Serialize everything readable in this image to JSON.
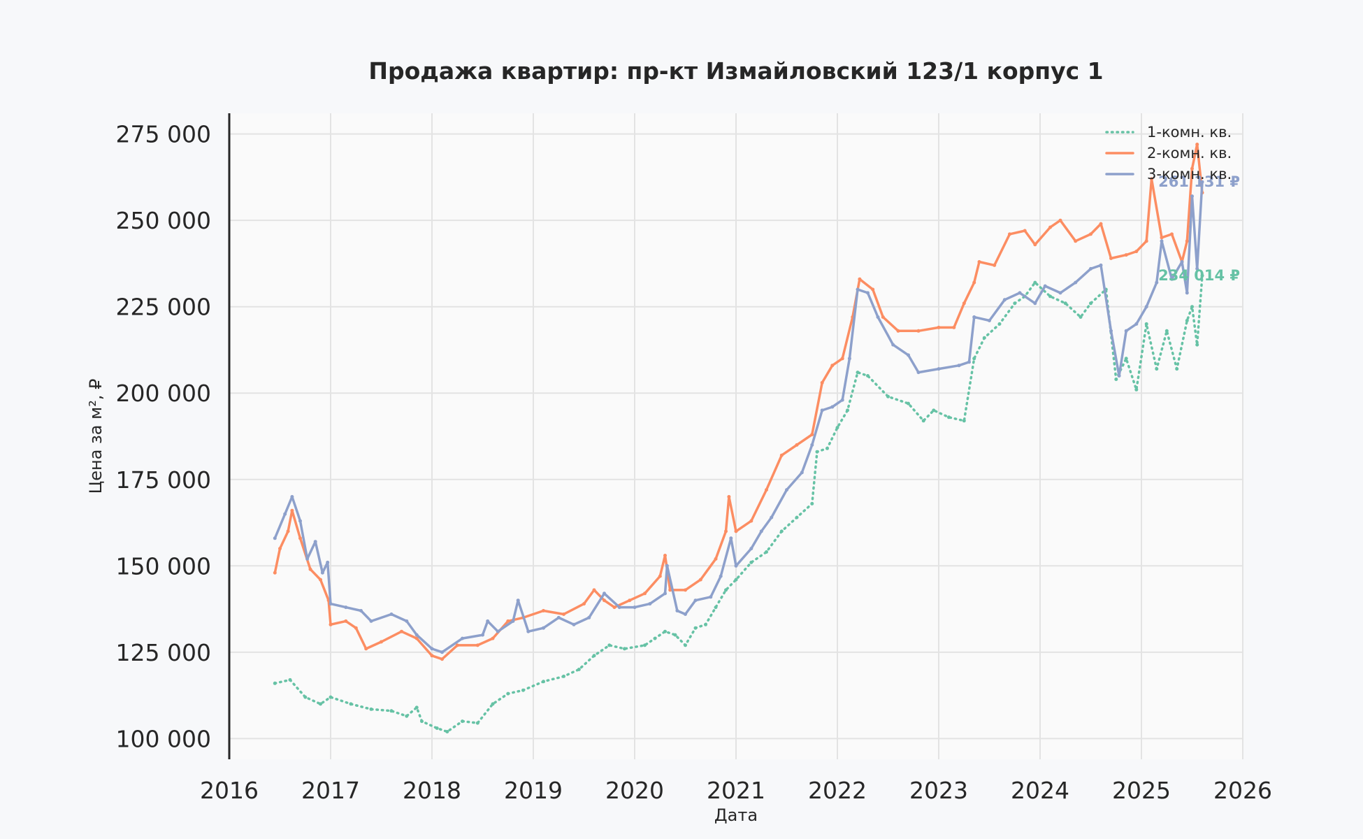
{
  "chart_data": {
    "type": "line",
    "title": "Продажа квартир: пр-кт Измайловский 123/1 корпус 1",
    "xlabel": "Дата",
    "ylabel": "Цена за м², ₽",
    "xlim": [
      2016.0,
      2026.0
    ],
    "ylim": [
      94000,
      281000
    ],
    "x_ticks": [
      "2016",
      "2017",
      "2018",
      "2019",
      "2020",
      "2021",
      "2022",
      "2023",
      "2024",
      "2025",
      "2026"
    ],
    "y_ticks": [
      "100 000",
      "125 000",
      "150 000",
      "175 000",
      "200 000",
      "225 000",
      "250 000",
      "275 000"
    ],
    "grid": true,
    "legend_position": "top-right",
    "series": [
      {
        "name": "1-комн. кв.",
        "color": "#66c2a5",
        "style": "dotted",
        "end_label": "234 014 ₽",
        "points": [
          [
            2016.45,
            116000
          ],
          [
            2016.6,
            117000
          ],
          [
            2016.75,
            112000
          ],
          [
            2016.9,
            110000
          ],
          [
            2017.0,
            112000
          ],
          [
            2017.2,
            110000
          ],
          [
            2017.4,
            108500
          ],
          [
            2017.6,
            108000
          ],
          [
            2017.75,
            106500
          ],
          [
            2017.85,
            109000
          ],
          [
            2017.9,
            105000
          ],
          [
            2018.05,
            103000
          ],
          [
            2018.15,
            102000
          ],
          [
            2018.3,
            105000
          ],
          [
            2018.45,
            104500
          ],
          [
            2018.6,
            110000
          ],
          [
            2018.75,
            113000
          ],
          [
            2018.9,
            114000
          ],
          [
            2019.1,
            116500
          ],
          [
            2019.3,
            118000
          ],
          [
            2019.45,
            120000
          ],
          [
            2019.6,
            124000
          ],
          [
            2019.75,
            127000
          ],
          [
            2019.9,
            126000
          ],
          [
            2020.1,
            127000
          ],
          [
            2020.2,
            129000
          ],
          [
            2020.3,
            131000
          ],
          [
            2020.4,
            130000
          ],
          [
            2020.5,
            127000
          ],
          [
            2020.6,
            132000
          ],
          [
            2020.7,
            133000
          ],
          [
            2020.8,
            138000
          ],
          [
            2020.9,
            143000
          ],
          [
            2021.0,
            146000
          ],
          [
            2021.15,
            151000
          ],
          [
            2021.3,
            154000
          ],
          [
            2021.45,
            160000
          ],
          [
            2021.6,
            164000
          ],
          [
            2021.75,
            168000
          ],
          [
            2021.8,
            183000
          ],
          [
            2021.9,
            184000
          ],
          [
            2022.0,
            190000
          ],
          [
            2022.1,
            195000
          ],
          [
            2022.2,
            206000
          ],
          [
            2022.3,
            205000
          ],
          [
            2022.5,
            199000
          ],
          [
            2022.7,
            197000
          ],
          [
            2022.85,
            192000
          ],
          [
            2022.95,
            195000
          ],
          [
            2023.1,
            193000
          ],
          [
            2023.25,
            192000
          ],
          [
            2023.35,
            210000
          ],
          [
            2023.45,
            216000
          ],
          [
            2023.6,
            220000
          ],
          [
            2023.75,
            226000
          ],
          [
            2023.85,
            228000
          ],
          [
            2023.95,
            232000
          ],
          [
            2024.1,
            228000
          ],
          [
            2024.25,
            226000
          ],
          [
            2024.4,
            222000
          ],
          [
            2024.5,
            226000
          ],
          [
            2024.65,
            230000
          ],
          [
            2024.75,
            204000
          ],
          [
            2024.85,
            210000
          ],
          [
            2024.95,
            201000
          ],
          [
            2025.05,
            220000
          ],
          [
            2025.15,
            207000
          ],
          [
            2025.25,
            218000
          ],
          [
            2025.35,
            207000
          ],
          [
            2025.45,
            221000
          ],
          [
            2025.5,
            225000
          ],
          [
            2025.55,
            214000
          ],
          [
            2025.6,
            234014
          ]
        ]
      },
      {
        "name": "2-комн. кв.",
        "color": "#fc8d62",
        "style": "solid",
        "end_label": "",
        "points": [
          [
            2016.45,
            148000
          ],
          [
            2016.5,
            155000
          ],
          [
            2016.58,
            160000
          ],
          [
            2016.62,
            166000
          ],
          [
            2016.7,
            158000
          ],
          [
            2016.8,
            149000
          ],
          [
            2016.9,
            146000
          ],
          [
            2016.98,
            140000
          ],
          [
            2017.0,
            133000
          ],
          [
            2017.15,
            134000
          ],
          [
            2017.25,
            132000
          ],
          [
            2017.35,
            126000
          ],
          [
            2017.5,
            128000
          ],
          [
            2017.7,
            131000
          ],
          [
            2017.85,
            129000
          ],
          [
            2018.0,
            124000
          ],
          [
            2018.1,
            123000
          ],
          [
            2018.25,
            127000
          ],
          [
            2018.45,
            127000
          ],
          [
            2018.6,
            129000
          ],
          [
            2018.75,
            134000
          ],
          [
            2018.9,
            135000
          ],
          [
            2019.1,
            137000
          ],
          [
            2019.3,
            136000
          ],
          [
            2019.5,
            139000
          ],
          [
            2019.6,
            143000
          ],
          [
            2019.7,
            140000
          ],
          [
            2019.8,
            138000
          ],
          [
            2019.95,
            140000
          ],
          [
            2020.1,
            142000
          ],
          [
            2020.25,
            147000
          ],
          [
            2020.3,
            153000
          ],
          [
            2020.35,
            143000
          ],
          [
            2020.5,
            143000
          ],
          [
            2020.65,
            146000
          ],
          [
            2020.8,
            152000
          ],
          [
            2020.9,
            160000
          ],
          [
            2020.93,
            170000
          ],
          [
            2021.0,
            160000
          ],
          [
            2021.15,
            163000
          ],
          [
            2021.3,
            172000
          ],
          [
            2021.45,
            182000
          ],
          [
            2021.6,
            185000
          ],
          [
            2021.75,
            188000
          ],
          [
            2021.85,
            203000
          ],
          [
            2021.95,
            208000
          ],
          [
            2022.05,
            210000
          ],
          [
            2022.15,
            222000
          ],
          [
            2022.22,
            233000
          ],
          [
            2022.35,
            230000
          ],
          [
            2022.45,
            222000
          ],
          [
            2022.6,
            218000
          ],
          [
            2022.8,
            218000
          ],
          [
            2023.0,
            219000
          ],
          [
            2023.15,
            219000
          ],
          [
            2023.25,
            226000
          ],
          [
            2023.35,
            232000
          ],
          [
            2023.4,
            238000
          ],
          [
            2023.55,
            237000
          ],
          [
            2023.7,
            246000
          ],
          [
            2023.85,
            247000
          ],
          [
            2023.95,
            243000
          ],
          [
            2024.1,
            248000
          ],
          [
            2024.2,
            250000
          ],
          [
            2024.35,
            244000
          ],
          [
            2024.5,
            246000
          ],
          [
            2024.6,
            249000
          ],
          [
            2024.7,
            239000
          ],
          [
            2024.85,
            240000
          ],
          [
            2024.95,
            241000
          ],
          [
            2025.05,
            244000
          ],
          [
            2025.1,
            262000
          ],
          [
            2025.2,
            245000
          ],
          [
            2025.3,
            246000
          ],
          [
            2025.4,
            238000
          ],
          [
            2025.45,
            244000
          ],
          [
            2025.5,
            265000
          ],
          [
            2025.55,
            272000
          ],
          [
            2025.6,
            258000
          ]
        ]
      },
      {
        "name": "3-комн. кв.",
        "color": "#8da0cb",
        "style": "solid",
        "end_label": "261 131 ₽",
        "points": [
          [
            2016.45,
            158000
          ],
          [
            2016.55,
            165000
          ],
          [
            2016.62,
            170000
          ],
          [
            2016.7,
            163000
          ],
          [
            2016.77,
            152000
          ],
          [
            2016.85,
            157000
          ],
          [
            2016.92,
            148000
          ],
          [
            2016.97,
            151000
          ],
          [
            2017.0,
            139000
          ],
          [
            2017.15,
            138000
          ],
          [
            2017.3,
            137000
          ],
          [
            2017.4,
            134000
          ],
          [
            2017.6,
            136000
          ],
          [
            2017.75,
            134000
          ],
          [
            2017.85,
            130000
          ],
          [
            2018.0,
            126000
          ],
          [
            2018.1,
            125000
          ],
          [
            2018.3,
            129000
          ],
          [
            2018.5,
            130000
          ],
          [
            2018.55,
            134000
          ],
          [
            2018.65,
            131000
          ],
          [
            2018.8,
            134000
          ],
          [
            2018.85,
            140000
          ],
          [
            2018.95,
            131000
          ],
          [
            2019.1,
            132000
          ],
          [
            2019.25,
            135000
          ],
          [
            2019.4,
            133000
          ],
          [
            2019.55,
            135000
          ],
          [
            2019.7,
            142000
          ],
          [
            2019.85,
            138000
          ],
          [
            2020.0,
            138000
          ],
          [
            2020.15,
            139000
          ],
          [
            2020.3,
            142000
          ],
          [
            2020.32,
            150000
          ],
          [
            2020.42,
            137000
          ],
          [
            2020.5,
            136000
          ],
          [
            2020.6,
            140000
          ],
          [
            2020.75,
            141000
          ],
          [
            2020.85,
            147000
          ],
          [
            2020.95,
            158000
          ],
          [
            2021.0,
            150000
          ],
          [
            2021.15,
            155000
          ],
          [
            2021.25,
            160000
          ],
          [
            2021.35,
            164000
          ],
          [
            2021.5,
            172000
          ],
          [
            2021.65,
            177000
          ],
          [
            2021.75,
            185000
          ],
          [
            2021.85,
            195000
          ],
          [
            2021.95,
            196000
          ],
          [
            2022.05,
            198000
          ],
          [
            2022.12,
            210000
          ],
          [
            2022.2,
            230000
          ],
          [
            2022.3,
            229000
          ],
          [
            2022.4,
            222000
          ],
          [
            2022.55,
            214000
          ],
          [
            2022.7,
            211000
          ],
          [
            2022.8,
            206000
          ],
          [
            2023.0,
            207000
          ],
          [
            2023.2,
            208000
          ],
          [
            2023.3,
            209000
          ],
          [
            2023.35,
            222000
          ],
          [
            2023.5,
            221000
          ],
          [
            2023.65,
            227000
          ],
          [
            2023.8,
            229000
          ],
          [
            2023.95,
            226000
          ],
          [
            2024.05,
            231000
          ],
          [
            2024.2,
            229000
          ],
          [
            2024.35,
            232000
          ],
          [
            2024.5,
            236000
          ],
          [
            2024.6,
            237000
          ],
          [
            2024.7,
            218000
          ],
          [
            2024.78,
            205000
          ],
          [
            2024.85,
            218000
          ],
          [
            2024.95,
            220000
          ],
          [
            2025.05,
            225000
          ],
          [
            2025.15,
            232000
          ],
          [
            2025.2,
            244000
          ],
          [
            2025.3,
            233000
          ],
          [
            2025.4,
            238000
          ],
          [
            2025.45,
            229000
          ],
          [
            2025.5,
            257000
          ],
          [
            2025.55,
            236000
          ],
          [
            2025.6,
            261131
          ]
        ]
      }
    ]
  }
}
